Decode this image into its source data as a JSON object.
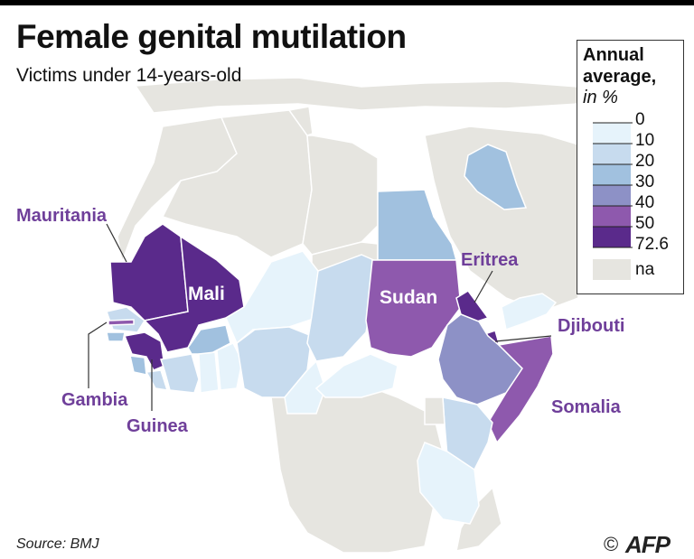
{
  "title": "Female genital mutilation",
  "subtitle": "Victims under 14-years-old",
  "legend": {
    "title_line1": "Annual",
    "title_line2": "average,",
    "unit": "in %",
    "ticks": [
      "0",
      "10",
      "20",
      "30",
      "40",
      "50",
      "72.6"
    ],
    "na_label": "na",
    "colors": [
      "#e6f3fb",
      "#c7dbee",
      "#a1c1df",
      "#8d91c6",
      "#8e59ad",
      "#5a2a8b"
    ],
    "na_color": "#e6e5e0"
  },
  "labels": {
    "mauritania": "Mauritania",
    "mali": "Mali",
    "gambia": "Gambia",
    "guinea": "Guinea",
    "sudan": "Sudan",
    "eritrea": "Eritrea",
    "djibouti": "Djibouti",
    "somalia": "Somalia"
  },
  "colors": {
    "land": "#e6e5e0",
    "border": "#ffffff",
    "sea": "#ffffff",
    "label": "#6f3f9a"
  },
  "source": "Source: BMJ",
  "credit": {
    "copyright": "©",
    "agency": "AFP"
  }
}
